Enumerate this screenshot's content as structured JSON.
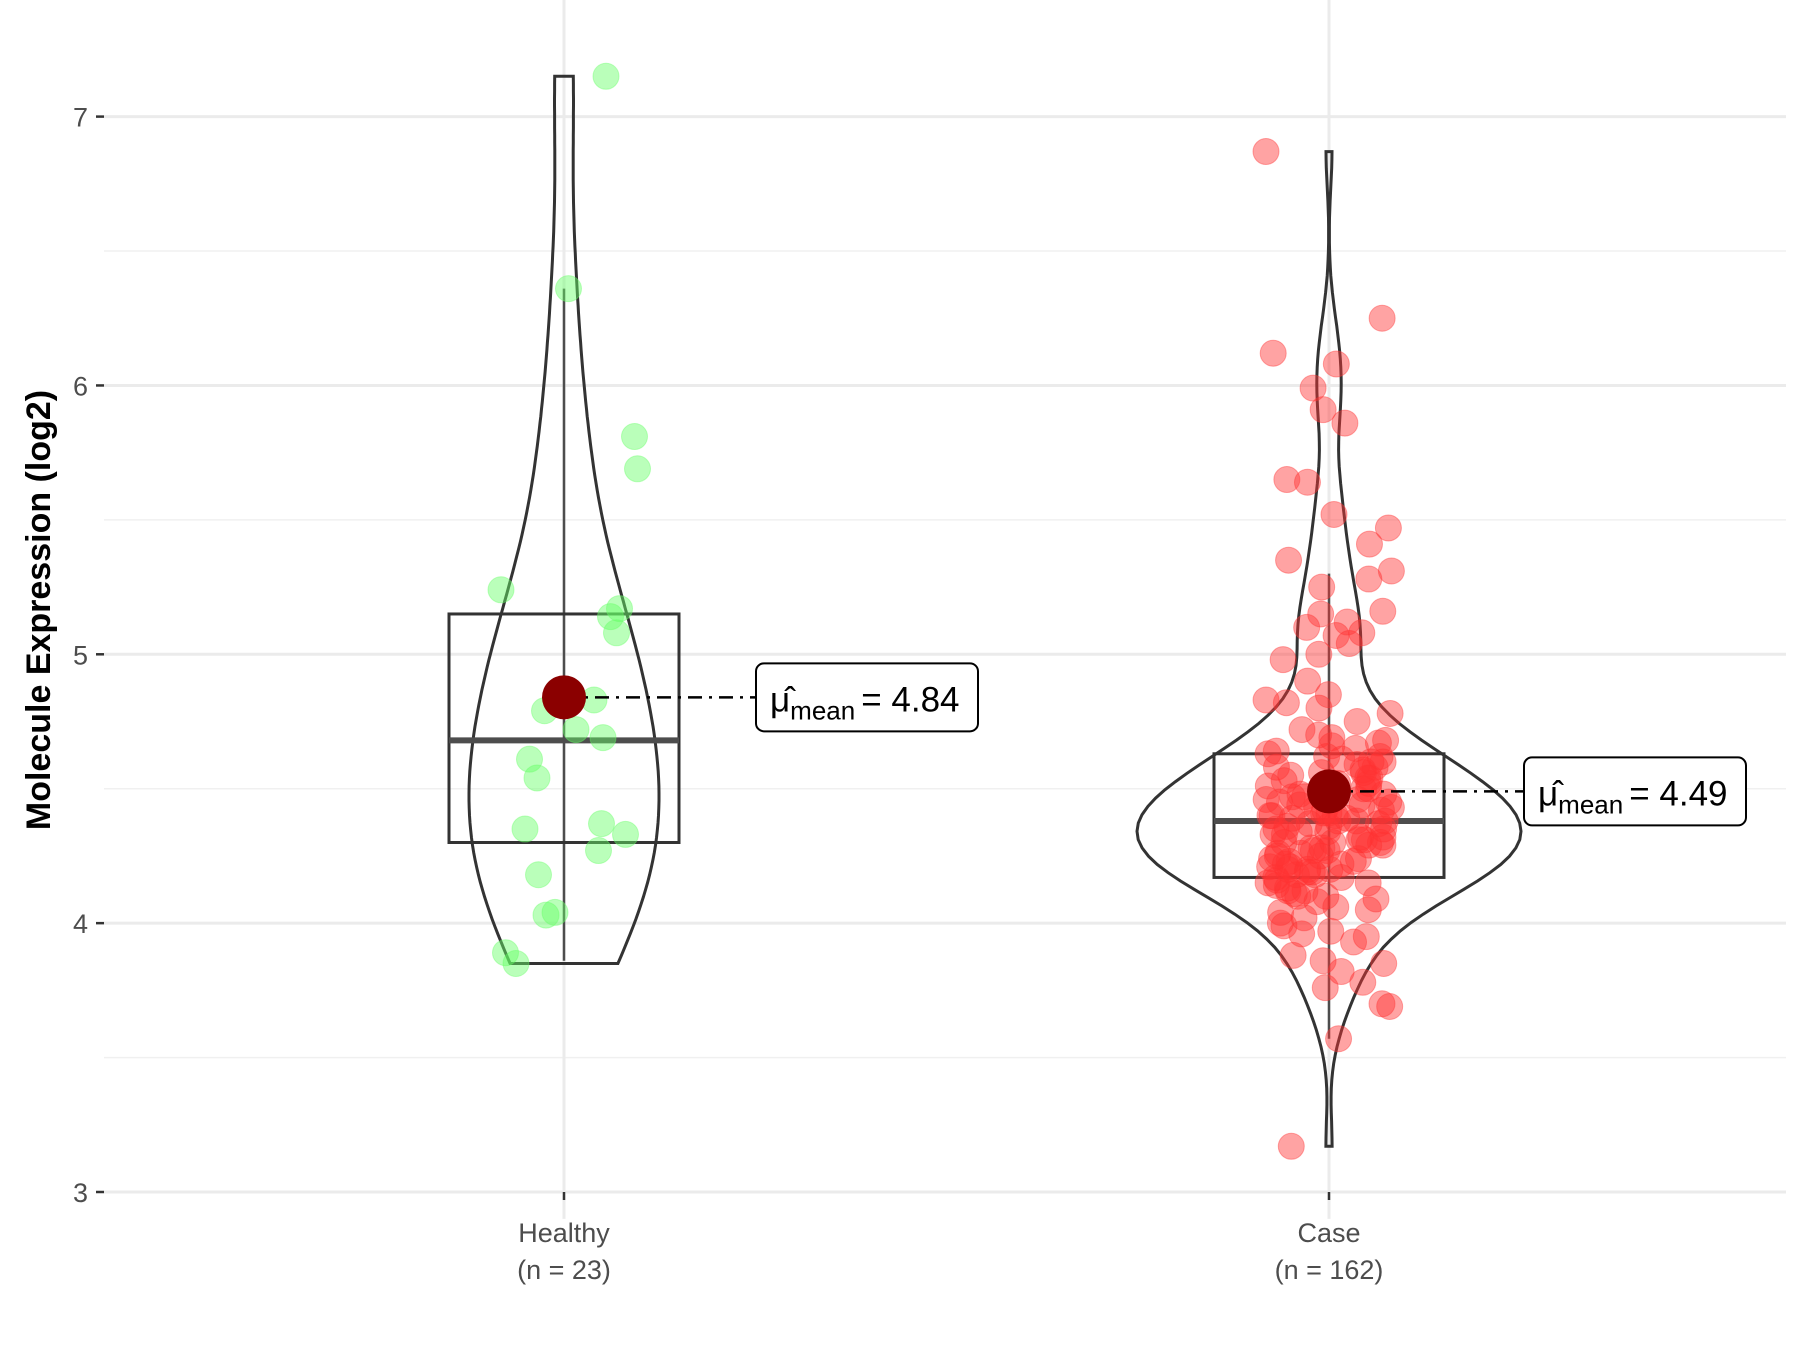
{
  "chart_data": {
    "type": "violin-box-jitter",
    "title": "",
    "xlabel": "",
    "ylabel": "Molecule Expression (log2)",
    "ylim": [
      2.9,
      7.25
    ],
    "yticks": [
      "3",
      "4",
      "5",
      "6",
      "7"
    ],
    "grid": true,
    "colors": {
      "Healthy": "#66ff66",
      "Case": "#ff3333",
      "mean_point": "#8b0000",
      "outline": "#333333"
    },
    "groups": [
      {
        "name": "Healthy",
        "n_label": "(n = 23)",
        "box": {
          "q1": 4.3,
          "median": 4.68,
          "q3": 5.15,
          "whisker_low": 3.86,
          "whisker_high": 6.36
        },
        "mean": 4.84,
        "mean_symbol": "μ̂",
        "mean_sub": "mean",
        "mean_text": "= 4.84",
        "values": [
          7.15,
          6.36,
          5.81,
          5.69,
          5.24,
          5.17,
          5.14,
          5.08,
          4.83,
          4.79,
          4.72,
          4.69,
          4.61,
          4.54,
          4.35,
          4.37,
          4.33,
          4.27,
          4.18,
          4.04,
          4.03,
          3.89,
          3.85
        ],
        "jitter": [
          0.28,
          0.03,
          0.47,
          0.49,
          -0.42,
          0.37,
          0.31,
          0.35,
          0.2,
          -0.13,
          0.08,
          0.26,
          -0.23,
          -0.18,
          -0.26,
          0.25,
          0.41,
          0.23,
          -0.17,
          -0.06,
          -0.12,
          -0.39,
          -0.32
        ]
      },
      {
        "name": "Case",
        "n_label": "(n = 162)",
        "box": {
          "q1": 4.17,
          "median": 4.38,
          "q3": 4.63,
          "whisker_low": 3.57,
          "whisker_high": 5.3
        },
        "mean": 4.49,
        "mean_symbol": "μ̂",
        "mean_sub": "mean",
        "mean_text": "= 4.49",
        "values": [
          6.87,
          6.25,
          6.12,
          6.08,
          5.99,
          5.91,
          5.86,
          5.65,
          5.64,
          5.52,
          5.47,
          5.41,
          5.35,
          5.31,
          5.28,
          5.25,
          5.16,
          5.15,
          5.12,
          5.1,
          5.08,
          5.07,
          5.04,
          5.0,
          4.98,
          4.9,
          4.85,
          4.83,
          4.82,
          4.8,
          4.78,
          4.75,
          4.72,
          4.7,
          3.17,
          3.57,
          3.69,
          3.7,
          3.76,
          3.78,
          3.82,
          3.85,
          3.86,
          3.88,
          3.93,
          3.95,
          3.96,
          3.97,
          3.99,
          4.0,
          4.02,
          4.04,
          4.05,
          4.06,
          4.08,
          4.09,
          4.1,
          4.11,
          4.12,
          4.12,
          4.13,
          4.14,
          4.15,
          4.15,
          4.16,
          4.17,
          4.17,
          4.18,
          4.18,
          4.19,
          4.19,
          4.2,
          4.2,
          4.21,
          4.21,
          4.22,
          4.22,
          4.23,
          4.23,
          4.24,
          4.24,
          4.25,
          4.25,
          4.26,
          4.26,
          4.27,
          4.27,
          4.28,
          4.28,
          4.29,
          4.29,
          4.3,
          4.3,
          4.31,
          4.31,
          4.32,
          4.32,
          4.33,
          4.33,
          4.34,
          4.34,
          4.35,
          4.35,
          4.36,
          4.36,
          4.37,
          4.37,
          4.38,
          4.38,
          4.38,
          4.39,
          4.39,
          4.4,
          4.4,
          4.41,
          4.41,
          4.42,
          4.42,
          4.43,
          4.43,
          4.44,
          4.44,
          4.45,
          4.45,
          4.46,
          4.46,
          4.47,
          4.47,
          4.48,
          4.48,
          4.49,
          4.5,
          4.5,
          4.51,
          4.52,
          4.52,
          4.53,
          4.54,
          4.54,
          4.55,
          4.56,
          4.56,
          4.57,
          4.58,
          4.58,
          4.59,
          4.6,
          4.6,
          4.61,
          4.62,
          4.62,
          4.63,
          4.64,
          4.65,
          4.66,
          4.67,
          4.68,
          4.69,
          4.1,
          4.2,
          4.3,
          4.4
        ]
      }
    ]
  }
}
